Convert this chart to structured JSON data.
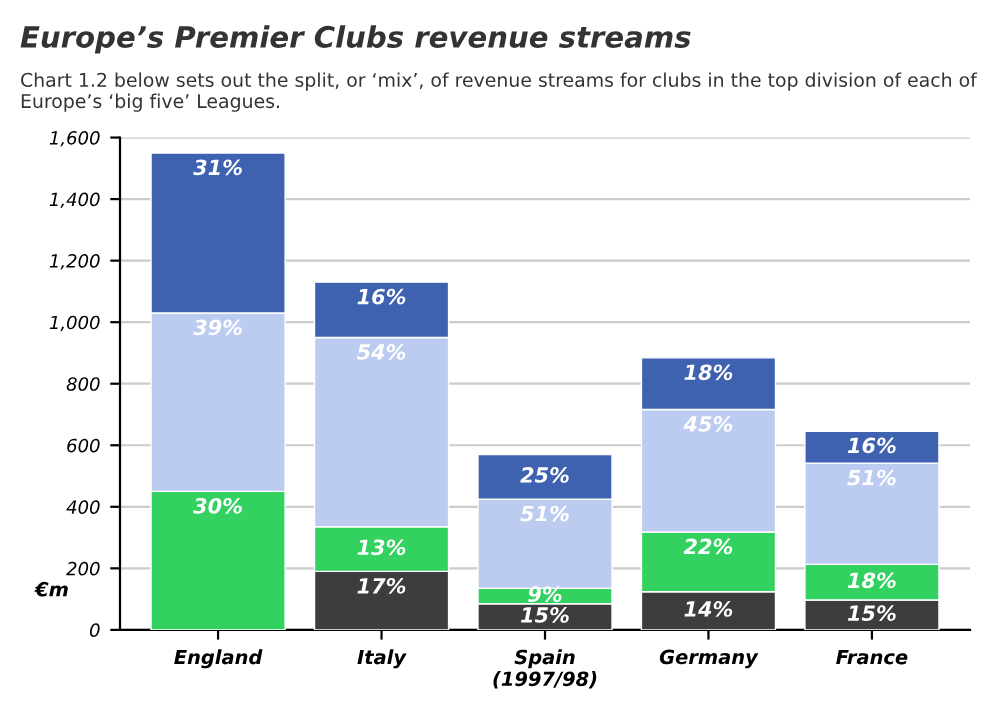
{
  "chart_data": {
    "type": "bar",
    "stacked": true,
    "title": "Europe’s Premier Clubs revenue streams",
    "subtitle": "Chart 1.2 below sets out the split, or ‘mix’, of revenue streams for clubs in the top division of each of Europe’s ‘big five’ Leagues.",
    "ylabel": "€m",
    "categories": [
      "England",
      "Italy",
      "Spain\n(1997/98)",
      "Germany",
      "France"
    ],
    "series": [
      {
        "color": "#3d3d3d",
        "values": [
          null,
          190,
          85,
          124,
          97
        ]
      },
      {
        "color": "#33d160",
        "values": [
          450,
          145,
          50,
          194,
          116
        ]
      },
      {
        "color": "#bccbf0",
        "values": [
          580,
          615,
          290,
          398,
          329
        ]
      },
      {
        "color": "#3f62b0",
        "values": [
          520,
          180,
          145,
          168,
          103
        ]
      }
    ],
    "annotations": [
      {
        "text": "17%",
        "x": "Italy",
        "y": 190
      },
      {
        "text": "15%",
        "x": "Spain\n(1997/98)",
        "y": 85
      },
      {
        "text": "14%",
        "x": "Germany",
        "y": 124
      },
      {
        "text": "15%",
        "x": "France",
        "y": 97
      },
      {
        "text": "30%",
        "x": "England",
        "y": 450
      },
      {
        "text": "13%",
        "x": "Italy",
        "y": 335
      },
      {
        "text": "9%",
        "x": "Spain\n(1997/98)",
        "y": 135
      },
      {
        "text": "22%",
        "x": "Germany",
        "y": 318
      },
      {
        "text": "18%",
        "x": "France",
        "y": 213
      },
      {
        "text": "39%",
        "x": "England",
        "y": 1030
      },
      {
        "text": "54%",
        "x": "Italy",
        "y": 950
      },
      {
        "text": "51%",
        "x": "Spain\n(1997/98)",
        "y": 425
      },
      {
        "text": "45%",
        "x": "Germany",
        "y": 716
      },
      {
        "text": "51%",
        "x": "France",
        "y": 542
      },
      {
        "text": "31%",
        "x": "England",
        "y": 1550
      },
      {
        "text": "16%",
        "x": "Italy",
        "y": 1130
      },
      {
        "text": "25%",
        "x": "Spain\n(1997/98)",
        "y": 570
      },
      {
        "text": "18%",
        "x": "Germany",
        "y": 884
      },
      {
        "text": "16%",
        "x": "France",
        "y": 645
      }
    ],
    "ylim": [
      0,
      1600
    ],
    "yticks": [
      0,
      200,
      400,
      600,
      800,
      {
        "value": 1000,
        "label": "1,000"
      },
      {
        "value": 1200,
        "label": "1,200"
      },
      {
        "value": 1400,
        "label": "1,400"
      },
      {
        "value": 1600,
        "label": "1,600"
      }
    ],
    "grid": "y"
  }
}
